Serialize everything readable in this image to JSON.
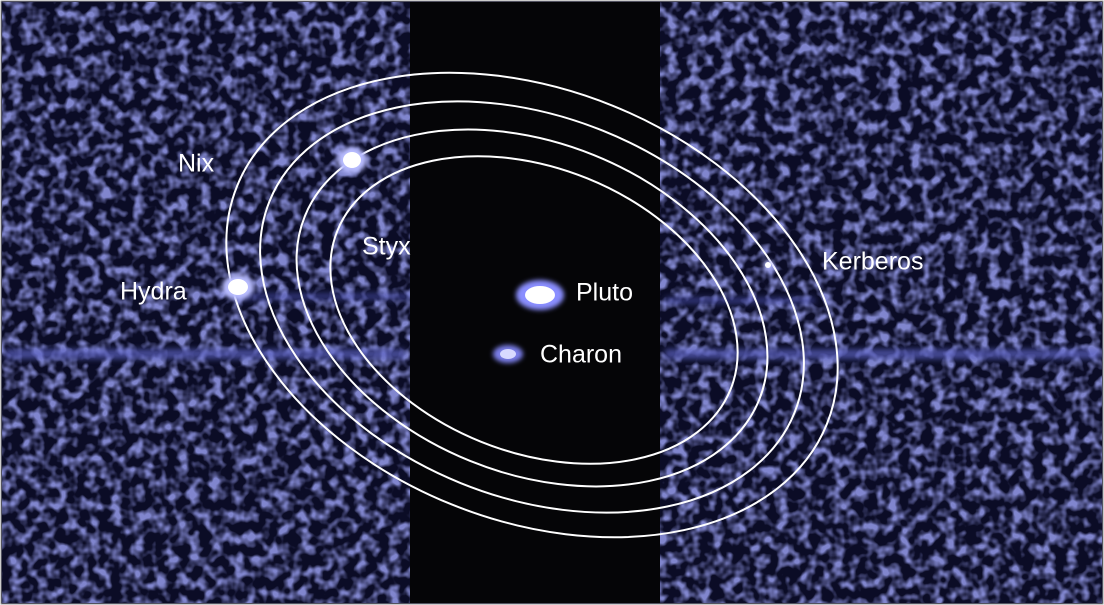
{
  "labels": [
    "Nix",
    "Styx",
    "Hydra",
    "Pluto",
    "Charon",
    "Kerberos"
  ]
}
